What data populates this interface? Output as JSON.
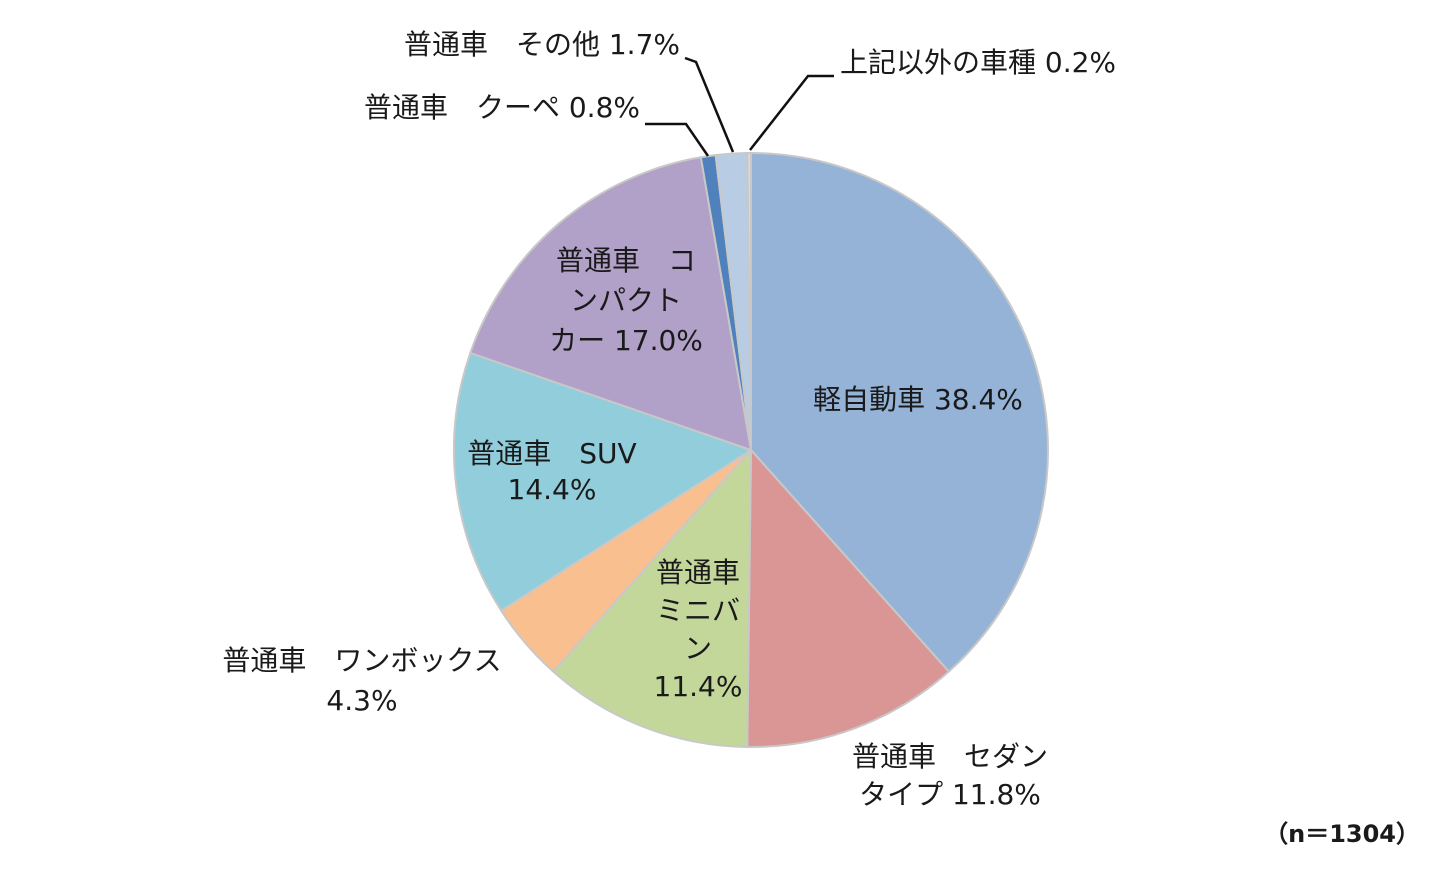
{
  "chart_data": {
    "type": "pie",
    "title": "",
    "note": "（n＝1304）",
    "slices": [
      {
        "label_lines": [
          "軽自動車 38.4%"
        ],
        "value": 38.4,
        "color": "#95b3d7"
      },
      {
        "label_lines": [
          "普通車　セダン",
          "タイプ 11.8%"
        ],
        "value": 11.8,
        "color": "#da9694"
      },
      {
        "label_lines": [
          "普通車",
          "ミニバ",
          "ン",
          "11.4%"
        ],
        "value": 11.4,
        "color": "#c4d79b"
      },
      {
        "label_lines": [
          "普通車　ワンボックス",
          "4.3%"
        ],
        "value": 4.3,
        "color": "#fabf8f"
      },
      {
        "label_lines": [
          "普通車　SUV",
          "14.4%"
        ],
        "value": 14.4,
        "color": "#92cddc"
      },
      {
        "label_lines": [
          "普通車　コ",
          "ンパクト",
          "カー 17.0%"
        ],
        "value": 17.0,
        "color": "#b1a0c7"
      },
      {
        "label_lines": [
          "普通車　クーペ 0.8%"
        ],
        "value": 0.8,
        "color": "#4f81bd"
      },
      {
        "label_lines": [
          "普通車　その他 1.7%"
        ],
        "value": 1.7,
        "color": "#b8cce4"
      },
      {
        "label_lines": [
          "上記以外の車種 0.2%"
        ],
        "value": 0.2,
        "color": "#d9d9d9"
      }
    ]
  }
}
